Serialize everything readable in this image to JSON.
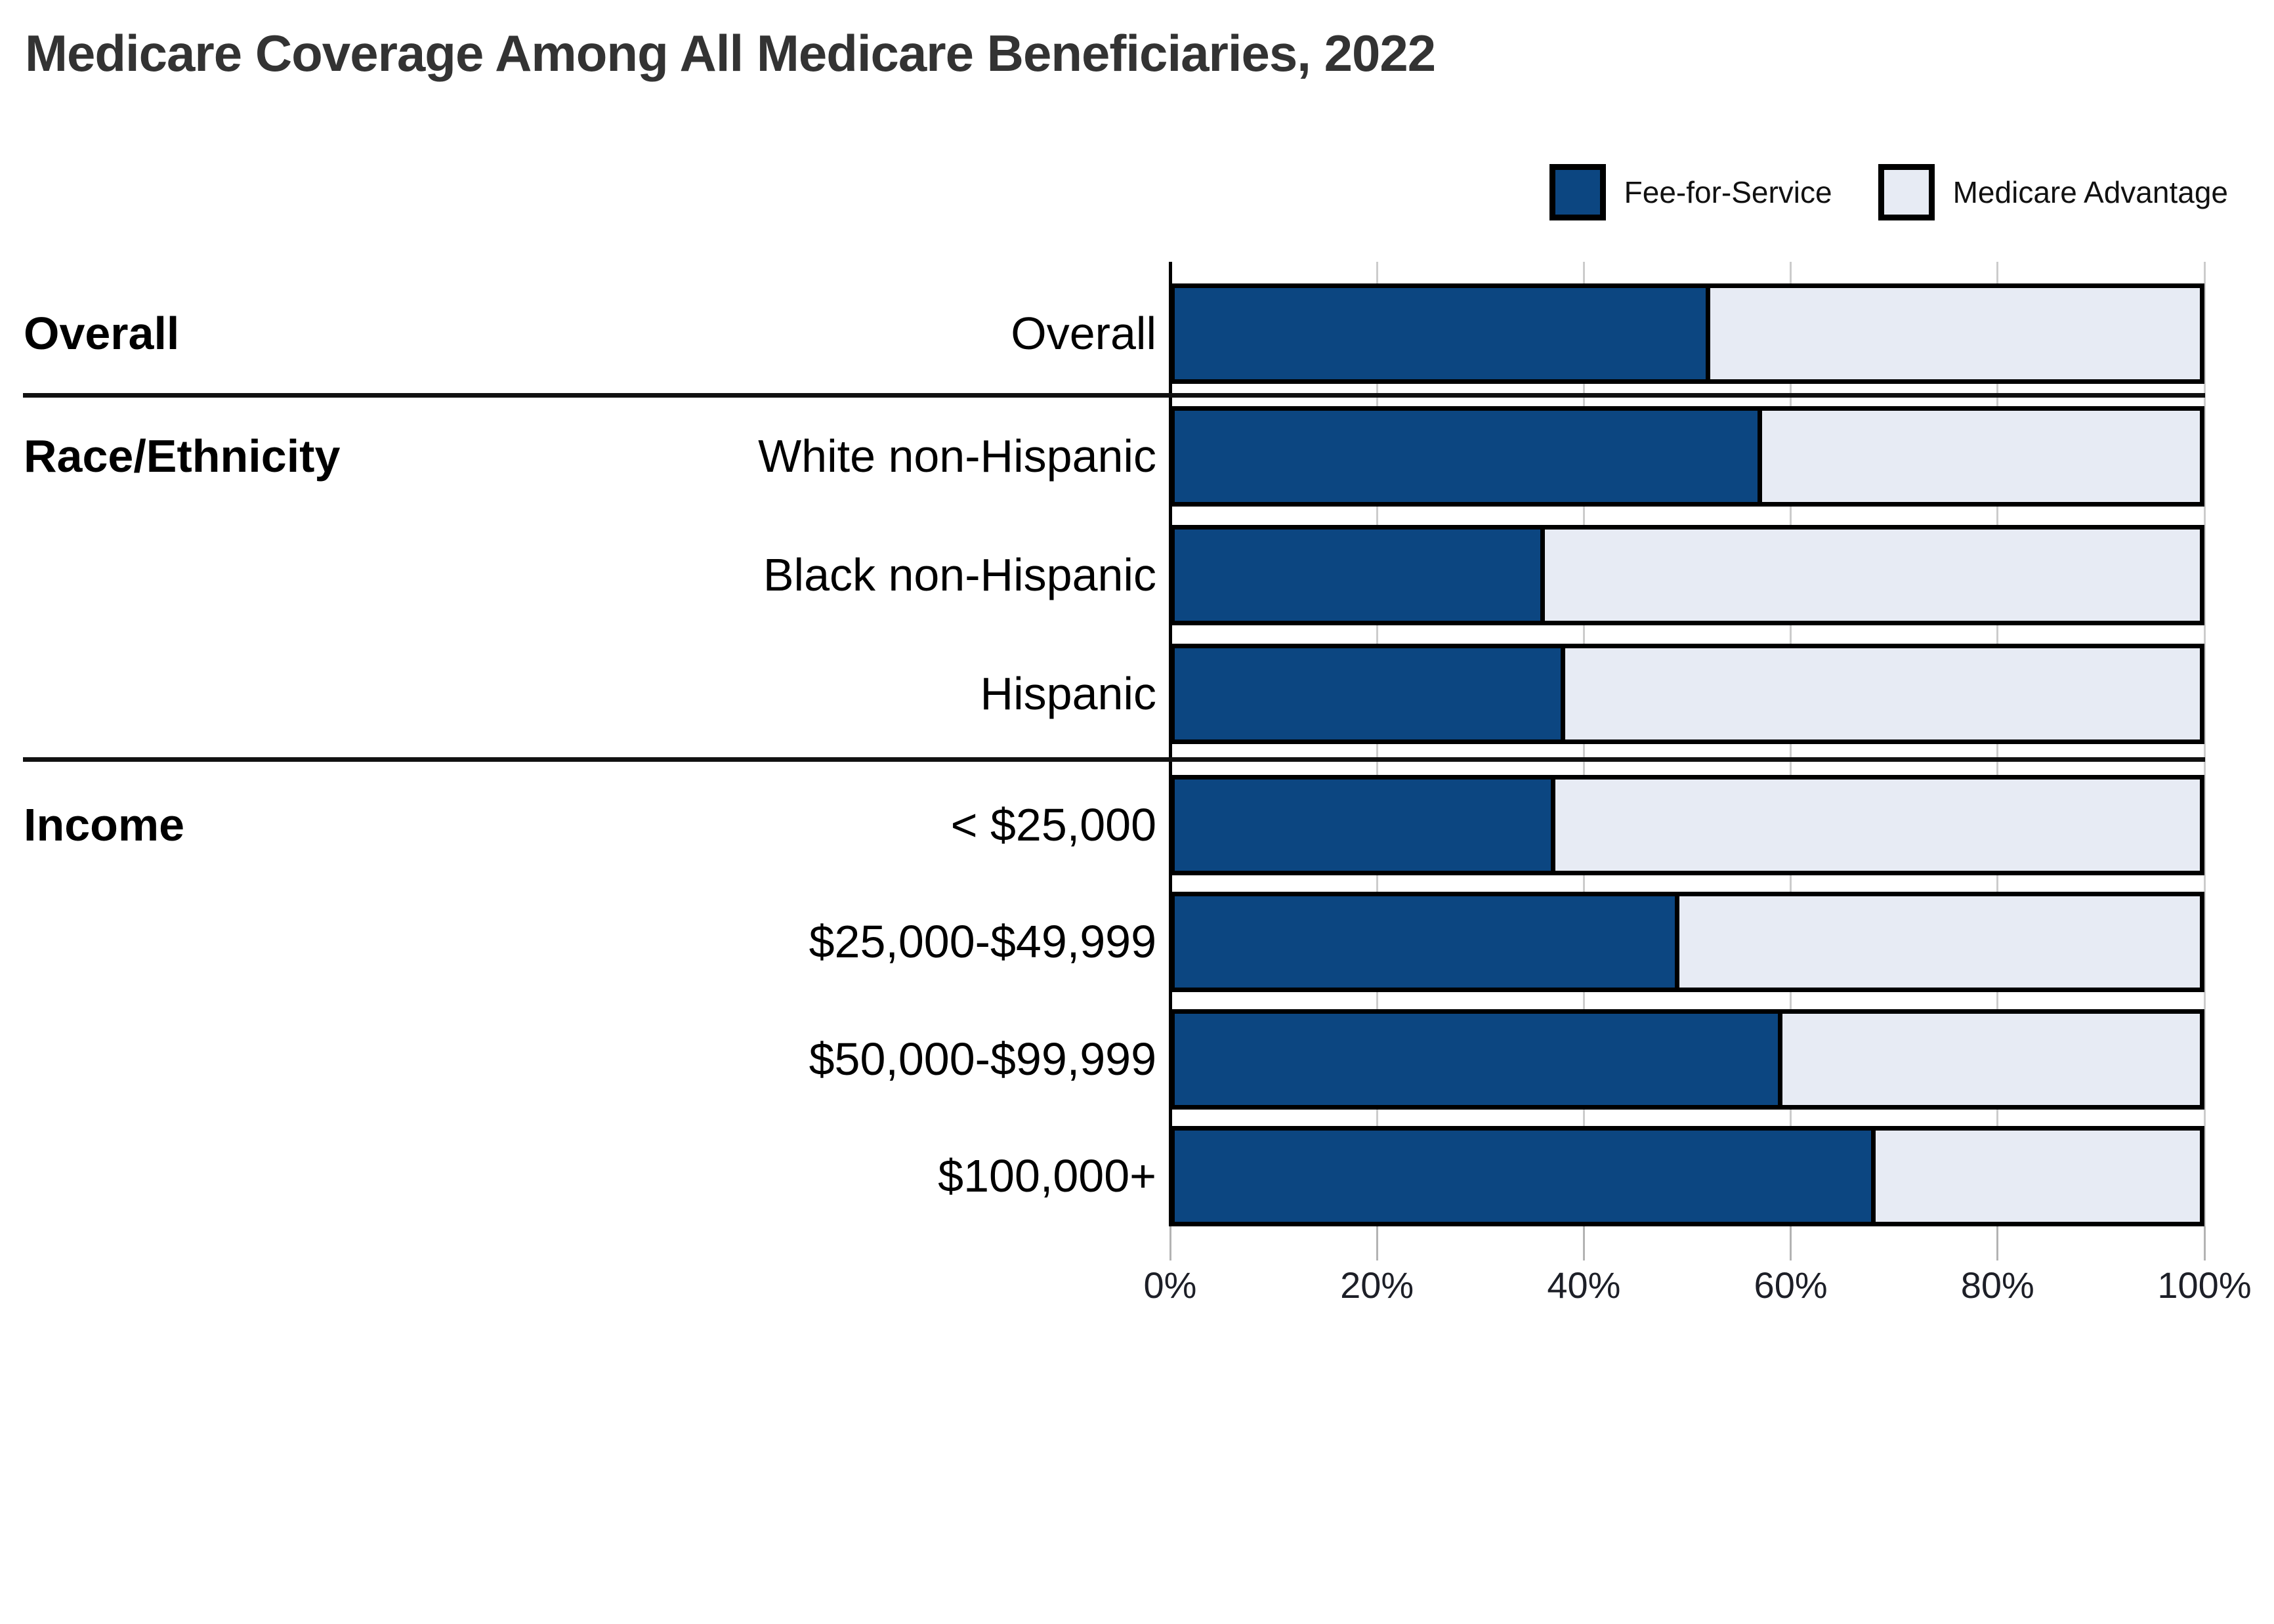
{
  "title": "Medicare Coverage Among All Medicare Beneficiaries, 2022",
  "legend": [
    {
      "label": "Fee-for-Service",
      "color": "#0c4681"
    },
    {
      "label": "Medicare Advantage",
      "color": "#e7ebf4"
    }
  ],
  "chart_data": {
    "type": "bar",
    "orientation": "horizontal",
    "stacked": true,
    "title": "Medicare Coverage Among All Medicare Beneficiaries, 2022",
    "xlabel": "",
    "ylabel": "",
    "x_axis": {
      "ticks": [
        "0%",
        "20%",
        "40%",
        "60%",
        "80%",
        "100%"
      ],
      "range": [
        0,
        100
      ]
    },
    "grid": true,
    "legend_position": "top-right",
    "series_names": [
      "Fee-for-Service",
      "Medicare Advantage"
    ],
    "groups": [
      {
        "label": "Overall",
        "rows": [
          {
            "label": "Overall",
            "fee_for_service": 52,
            "medicare_advantage": 48
          }
        ]
      },
      {
        "label": "Race/Ethnicity",
        "rows": [
          {
            "label": "White non-Hispanic",
            "fee_for_service": 57,
            "medicare_advantage": 43
          },
          {
            "label": "Black non-Hispanic",
            "fee_for_service": 36,
            "medicare_advantage": 64
          },
          {
            "label": "Hispanic",
            "fee_for_service": 38,
            "medicare_advantage": 62
          }
        ]
      },
      {
        "label": "Income",
        "rows": [
          {
            "label": "< $25,000",
            "fee_for_service": 37,
            "medicare_advantage": 63
          },
          {
            "label": "$25,000-$49,999",
            "fee_for_service": 49,
            "medicare_advantage": 51
          },
          {
            "label": "$50,000-$99,999",
            "fee_for_service": 59,
            "medicare_advantage": 41
          },
          {
            "label": "$100,000+",
            "fee_for_service": 68,
            "medicare_advantage": 32
          }
        ]
      }
    ],
    "colors": {
      "fee_for_service": "#0c4681",
      "medicare_advantage": "#e7ebf4",
      "bar_border": "#000000",
      "gridline": "#cccccc",
      "axis_line": "#000000",
      "divider": "#111111",
      "tick": "#b3b3b3",
      "title_text": "#333333",
      "label_text": "#000000"
    }
  }
}
